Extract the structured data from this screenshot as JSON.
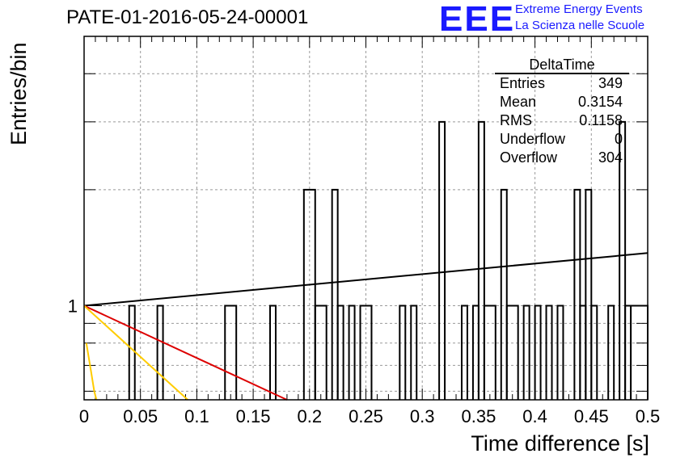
{
  "header": {
    "title": "PATE-01-2016-05-24-00001",
    "logo_text": "EEE",
    "logo_line1": "Extreme Energy Events",
    "logo_line2": "La Scienza nelle Scuole",
    "logo_color": "#1a1aff"
  },
  "stats_box": {
    "title": "DeltaTime",
    "rows": [
      {
        "label": "Entries",
        "value": "349"
      },
      {
        "label": "Mean",
        "value": "0.3154"
      },
      {
        "label": "RMS",
        "value": "0.1158"
      },
      {
        "label": "Underflow",
        "value": "0"
      },
      {
        "label": "Overflow",
        "value": "304"
      }
    ]
  },
  "chart_data": {
    "type": "histogram",
    "title": "PATE-01-2016-05-24-00001",
    "xlabel": "Time difference [s]",
    "ylabel": "Entries/bin",
    "xlim": [
      0,
      0.5
    ],
    "ylim": [
      0.57,
      5.0
    ],
    "y_scale": "log",
    "grid": true,
    "x_tick_labels": [
      "0",
      "0.05",
      "0.1",
      "0.15",
      "0.2",
      "0.25",
      "0.3",
      "0.35",
      "0.4",
      "0.45",
      "0.5"
    ],
    "y_tick_labels": [
      "1"
    ],
    "bin_width": 0.005,
    "bins": [
      {
        "x0": 0.04,
        "x1": 0.045,
        "count": 1
      },
      {
        "x0": 0.065,
        "x1": 0.07,
        "count": 1
      },
      {
        "x0": 0.125,
        "x1": 0.135,
        "count": 1
      },
      {
        "x0": 0.165,
        "x1": 0.17,
        "count": 1
      },
      {
        "x0": 0.195,
        "x1": 0.205,
        "count": 2
      },
      {
        "x0": 0.205,
        "x1": 0.215,
        "count": 1
      },
      {
        "x0": 0.22,
        "x1": 0.225,
        "count": 2
      },
      {
        "x0": 0.225,
        "x1": 0.23,
        "count": 1
      },
      {
        "x0": 0.235,
        "x1": 0.24,
        "count": 1
      },
      {
        "x0": 0.245,
        "x1": 0.255,
        "count": 1
      },
      {
        "x0": 0.28,
        "x1": 0.285,
        "count": 1
      },
      {
        "x0": 0.29,
        "x1": 0.295,
        "count": 1
      },
      {
        "x0": 0.315,
        "x1": 0.32,
        "count": 3
      },
      {
        "x0": 0.335,
        "x1": 0.34,
        "count": 1
      },
      {
        "x0": 0.345,
        "x1": 0.35,
        "count": 1
      },
      {
        "x0": 0.35,
        "x1": 0.355,
        "count": 3
      },
      {
        "x0": 0.355,
        "x1": 0.365,
        "count": 1
      },
      {
        "x0": 0.37,
        "x1": 0.375,
        "count": 2
      },
      {
        "x0": 0.375,
        "x1": 0.385,
        "count": 1
      },
      {
        "x0": 0.39,
        "x1": 0.395,
        "count": 1
      },
      {
        "x0": 0.4,
        "x1": 0.405,
        "count": 1
      },
      {
        "x0": 0.41,
        "x1": 0.415,
        "count": 1
      },
      {
        "x0": 0.42,
        "x1": 0.425,
        "count": 1
      },
      {
        "x0": 0.435,
        "x1": 0.44,
        "count": 2
      },
      {
        "x0": 0.44,
        "x1": 0.445,
        "count": 1
      },
      {
        "x0": 0.445,
        "x1": 0.45,
        "count": 2
      },
      {
        "x0": 0.45,
        "x1": 0.455,
        "count": 1
      },
      {
        "x0": 0.465,
        "x1": 0.47,
        "count": 1
      },
      {
        "x0": 0.475,
        "x1": 0.48,
        "count": 3
      },
      {
        "x0": 0.48,
        "x1": 0.485,
        "count": 1
      },
      {
        "x0": 0.485,
        "x1": 0.5,
        "count": 1
      }
    ],
    "fit_curves": [
      {
        "color": "#000000",
        "points": [
          [
            0,
            1.0
          ],
          [
            0.5,
            1.37
          ]
        ]
      },
      {
        "color": "#dd0000",
        "points": [
          [
            0,
            1.0
          ],
          [
            0.18,
            0.57
          ]
        ]
      },
      {
        "color": "#ffcc00",
        "points": [
          [
            0,
            1.0
          ],
          [
            0.092,
            0.57
          ]
        ]
      },
      {
        "color": "#ffcc00",
        "points": [
          [
            0.002,
            0.8
          ],
          [
            0.006,
            0.68
          ],
          [
            0.009,
            0.6
          ],
          [
            0.011,
            0.57
          ]
        ]
      }
    ]
  }
}
